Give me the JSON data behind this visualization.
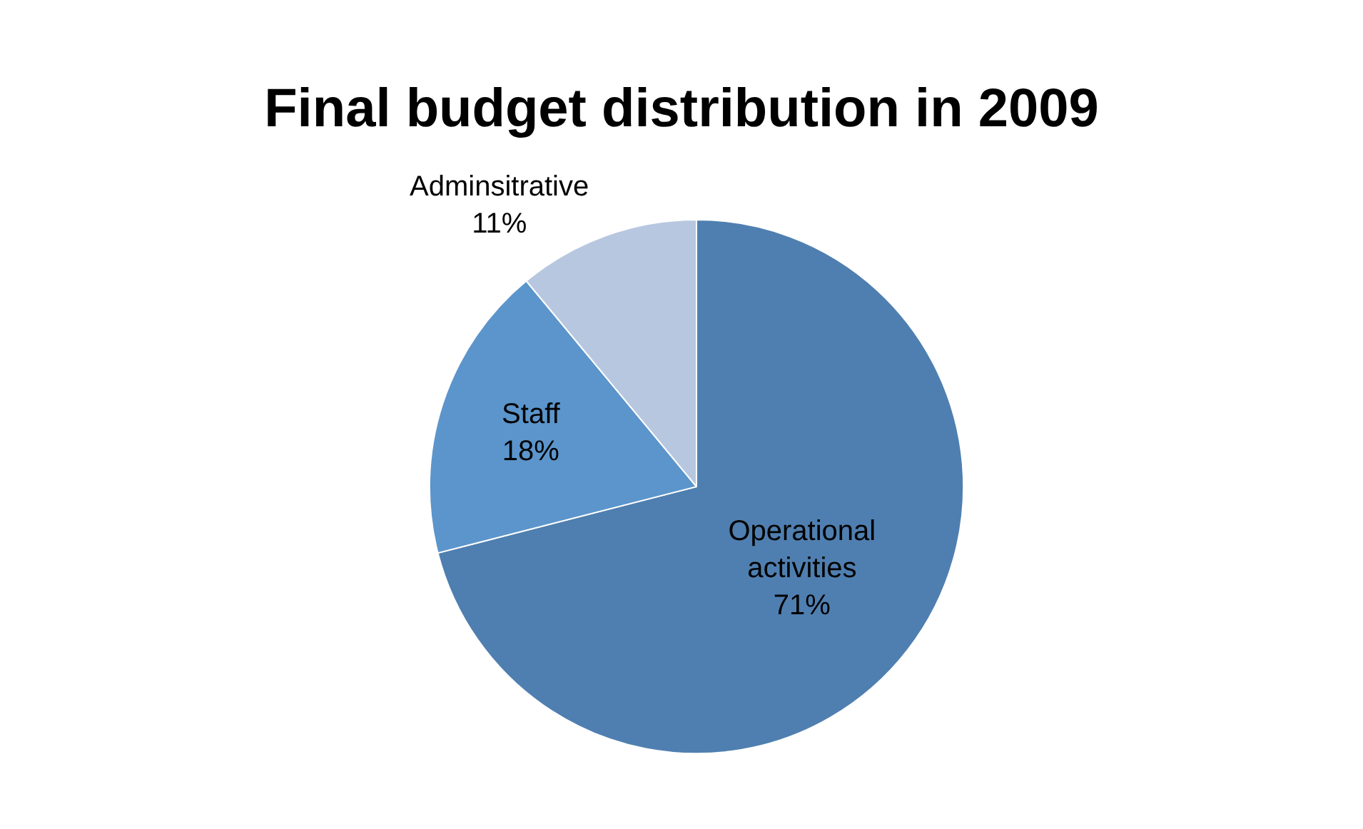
{
  "chart_data": {
    "type": "pie",
    "title": "Final budget distribution in 2009",
    "categories": [
      "Operational activities",
      "Staff",
      "Adminsitrative"
    ],
    "values": [
      71,
      18,
      11
    ],
    "value_labels": [
      "71%",
      "18%",
      "11%"
    ],
    "colors": [
      "#4f7fb0",
      "#5b95cb",
      "#b8c7e0"
    ],
    "legend": false
  }
}
